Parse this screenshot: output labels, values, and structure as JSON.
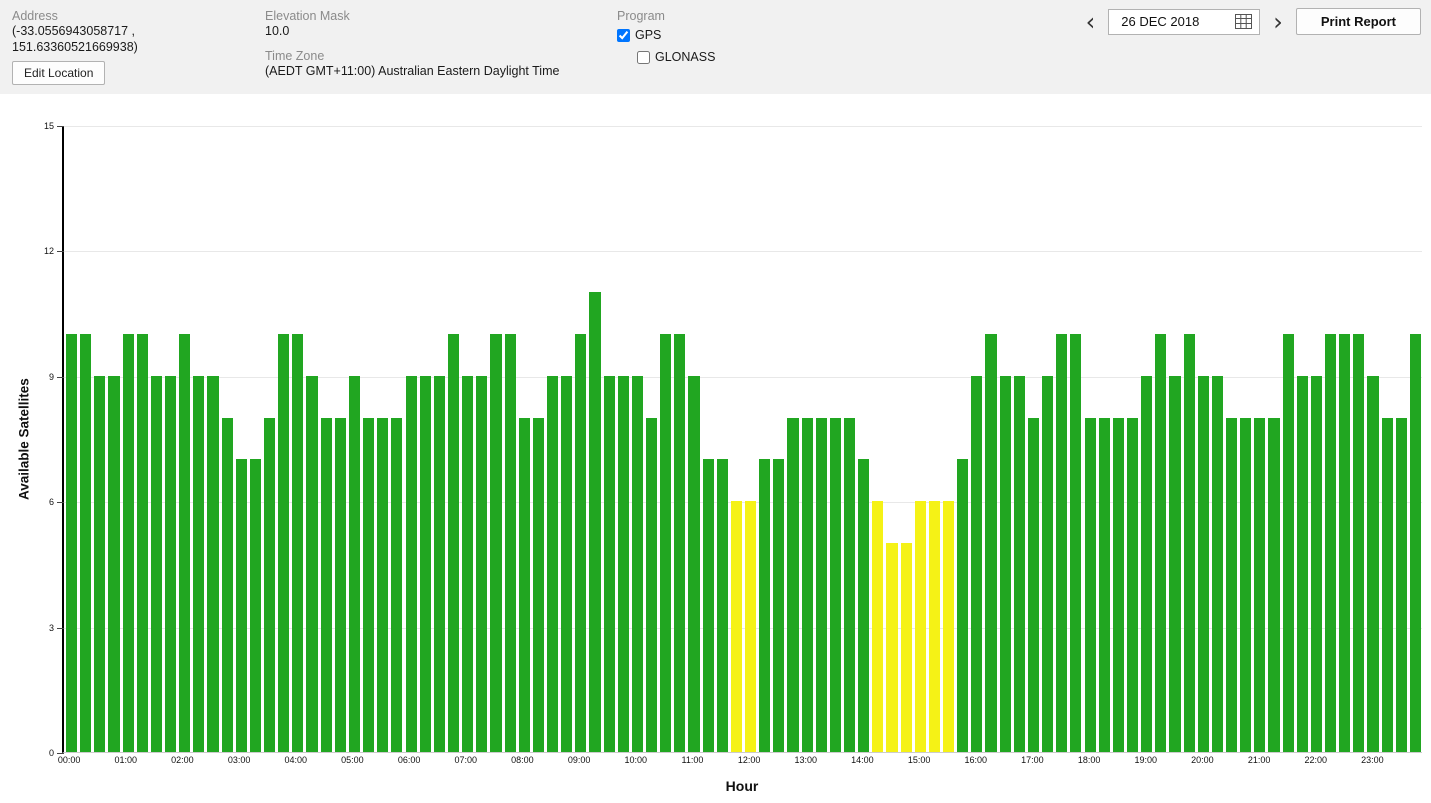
{
  "header": {
    "address": {
      "label": "Address",
      "line1": "(-33.0556943058717 ,",
      "line2": "151.63360521669938)",
      "edit_button": "Edit Location"
    },
    "elevation_mask": {
      "label": "Elevation Mask",
      "value": "10.0"
    },
    "time_zone": {
      "label": "Time Zone",
      "value": "(AEDT GMT+11:00) Australian Eastern Daylight Time"
    },
    "program": {
      "label": "Program",
      "options": [
        {
          "label": "GPS",
          "checked": true
        },
        {
          "label": "GLONASS",
          "checked": false
        }
      ]
    },
    "date_nav": {
      "prev_icon": "‹",
      "date": "26 DEC 2018",
      "next_icon": "›",
      "calendar_icon": "calendar-grid"
    },
    "print_button": "Print Report"
  },
  "chart_data": {
    "type": "bar",
    "title": "",
    "xlabel": "Hour",
    "ylabel": "Available Satellites",
    "ylim": [
      0,
      15
    ],
    "yticks": [
      0,
      3,
      6,
      9,
      12,
      15
    ],
    "grid": "horizontal",
    "x_start": "00:00",
    "bar_interval_minutes": 15,
    "x_tick_labels": [
      "00:00",
      "01:00",
      "02:00",
      "03:00",
      "04:00",
      "05:00",
      "06:00",
      "07:00",
      "08:00",
      "09:00",
      "10:00",
      "11:00",
      "12:00",
      "13:00",
      "14:00",
      "15:00",
      "16:00",
      "17:00",
      "18:00",
      "19:00",
      "20:00",
      "21:00",
      "22:00",
      "23:00"
    ],
    "values": [
      10,
      10,
      9,
      9,
      10,
      10,
      9,
      9,
      10,
      9,
      9,
      8,
      7,
      7,
      8,
      10,
      10,
      9,
      8,
      8,
      9,
      8,
      8,
      8,
      9,
      9,
      9,
      10,
      9,
      9,
      10,
      10,
      8,
      8,
      9,
      9,
      10,
      11,
      9,
      9,
      9,
      8,
      10,
      10,
      9,
      7,
      7,
      6,
      6,
      7,
      7,
      8,
      8,
      8,
      8,
      8,
      7,
      6,
      5,
      5,
      6,
      6,
      6,
      7,
      9,
      10,
      9,
      9,
      8,
      9,
      10,
      10,
      8,
      8,
      8,
      8,
      9,
      10,
      9,
      10,
      9,
      9,
      8,
      8,
      8,
      8,
      10,
      9,
      9,
      10,
      10,
      10,
      9,
      8,
      8,
      10
    ],
    "colors": {
      "normal": "#21A621",
      "low": "#F5F216"
    },
    "low_threshold": 7
  }
}
